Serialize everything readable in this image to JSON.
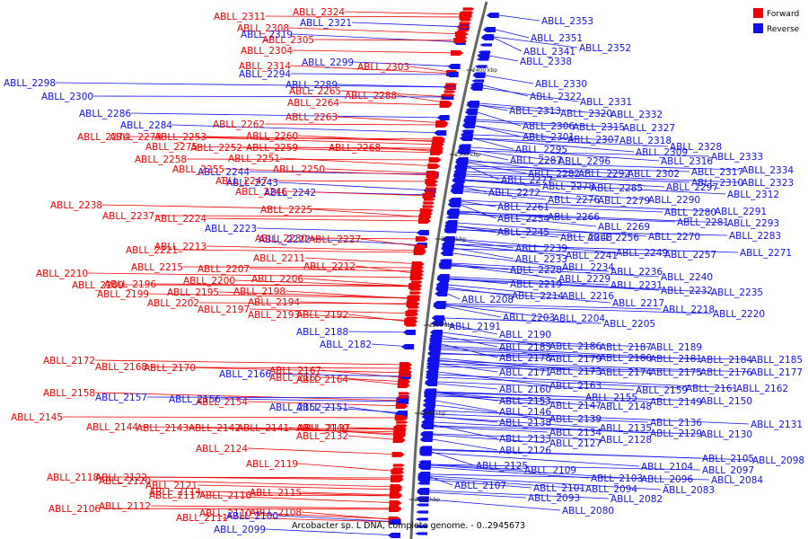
{
  "caption": "Arcobacter sp. L DNA, complete genome. - 0..2945673",
  "legend": [
    {
      "label": "Forward",
      "color": "#ee0000"
    },
    {
      "label": "Reverse",
      "color": "#1010ee"
    }
  ],
  "colors": {
    "forward": "#ee0000",
    "reverse": "#1010ee",
    "backbone": "#666666"
  },
  "ticks": [
    "2400 kbp",
    "2350 kbp",
    "2300 kbp",
    "2250 kbp",
    "2200 kbp",
    "2150 kbp"
  ],
  "left_labels": [
    [
      "ABLL_2311",
      "r"
    ],
    [
      "ABLL_2324",
      "r"
    ],
    [
      "ABLL_2321",
      "b"
    ],
    [
      "ABLL_2308",
      "r"
    ],
    [
      "ABLL_2319",
      "b"
    ],
    [
      "ABLL_2305",
      "r"
    ],
    [
      "ABLL_2304",
      "r"
    ],
    [
      "ABLL_2299",
      "b"
    ],
    [
      "ABLL_2303",
      "r"
    ],
    [
      "ABLL_2314",
      "r"
    ],
    [
      "ABLL_2294",
      "b"
    ],
    [
      "ABLL_2289",
      "b"
    ],
    [
      "ABLL_2298",
      "b"
    ],
    [
      "ABLL_2265",
      "r"
    ],
    [
      "ABLL_2288",
      "r"
    ],
    [
      "ABLL_2300",
      "b"
    ],
    [
      "ABLL_2264",
      "r"
    ],
    [
      "ABLL_2286",
      "b"
    ],
    [
      "ABLL_2263",
      "r"
    ],
    [
      "ABLL_2284",
      "b"
    ],
    [
      "ABLL_2262",
      "r"
    ],
    [
      "ABLL_2274",
      "r"
    ],
    [
      "ABLL_2253",
      "r"
    ],
    [
      "ABLL_2260",
      "r"
    ],
    [
      "ABLL_2273",
      "r"
    ],
    [
      "ABLL_2252",
      "r"
    ],
    [
      "ABLL_2259",
      "r"
    ],
    [
      "ABLL_2268",
      "r"
    ],
    [
      "ABLL_2275",
      "r"
    ],
    [
      "ABLL_2251",
      "r"
    ],
    [
      "ABLL_2258",
      "r"
    ],
    [
      "ABLL_2244",
      "b"
    ],
    [
      "ABLL_2250",
      "r"
    ],
    [
      "ABLL_2255",
      "r"
    ],
    [
      "ABLL_2243",
      "b"
    ],
    [
      "ABLL_2247",
      "r"
    ],
    [
      "ABLL_2242",
      "b"
    ],
    [
      "ABLL_2246",
      "r"
    ],
    [
      "ABLL_2238",
      "r"
    ],
    [
      "ABLL_2225",
      "r"
    ],
    [
      "ABLL_2237",
      "r"
    ],
    [
      "ABLL_2224",
      "r"
    ],
    [
      "ABLL_2223",
      "b"
    ],
    [
      "ABLL_2222",
      "b"
    ],
    [
      "ABLL_2227",
      "r"
    ],
    [
      "ABLL_2230",
      "r"
    ],
    [
      "ABLL_2221",
      "r"
    ],
    [
      "ABLL_2213",
      "r"
    ],
    [
      "ABLL_2211",
      "r"
    ],
    [
      "ABLL_2212",
      "r"
    ],
    [
      "ABLL_2215",
      "r"
    ],
    [
      "ABLL_2207",
      "r"
    ],
    [
      "ABLL_2210",
      "r"
    ],
    [
      "ABLL_2200",
      "r"
    ],
    [
      "ABLL_2206",
      "r"
    ],
    [
      "ABLL_2209",
      "r"
    ],
    [
      "ABLL_2196",
      "r"
    ],
    [
      "ABLL_2199",
      "r"
    ],
    [
      "ABLL_2195",
      "r"
    ],
    [
      "ABLL_2198",
      "r"
    ],
    [
      "ABLL_2202",
      "r"
    ],
    [
      "ABLL_2194",
      "r"
    ],
    [
      "ABLL_2197",
      "r"
    ],
    [
      "ABLL_2193",
      "r"
    ],
    [
      "ABLL_2192",
      "r"
    ],
    [
      "ABLL_2188",
      "b"
    ],
    [
      "ABLL_2182",
      "b"
    ],
    [
      "ABLL_2172",
      "r"
    ],
    [
      "ABLL_2168",
      "r"
    ],
    [
      "ABLL_2167",
      "r"
    ],
    [
      "ABLL_2170",
      "r"
    ],
    [
      "ABLL_2166",
      "b"
    ],
    [
      "ABLL_2165",
      "r"
    ],
    [
      "ABLL_2164",
      "r"
    ],
    [
      "ABLL_2158",
      "r"
    ],
    [
      "ABLL_2157",
      "b"
    ],
    [
      "ABLL_2156",
      "b"
    ],
    [
      "ABLL_2154",
      "r"
    ],
    [
      "ABLL_2152",
      "b"
    ],
    [
      "ABLL_2151",
      "b"
    ],
    [
      "ABLL_2145",
      "r"
    ],
    [
      "ABLL_2144",
      "r"
    ],
    [
      "ABLL_2143",
      "r"
    ],
    [
      "ABLL_2142",
      "r"
    ],
    [
      "ABLL_2141",
      "r"
    ],
    [
      "ABLL_2140",
      "r"
    ],
    [
      "ABLL_2137",
      "r"
    ],
    [
      "ABLL_2132",
      "r"
    ],
    [
      "ABLL_2124",
      "r"
    ],
    [
      "ABLL_2119",
      "r"
    ],
    [
      "ABLL_2118",
      "r"
    ],
    [
      "ABLL_2122",
      "r"
    ],
    [
      "ABLL_2121",
      "r"
    ],
    [
      "ABLL_2120",
      "r"
    ],
    [
      "ABLL_2117",
      "r"
    ],
    [
      "ABLL_2116",
      "r"
    ],
    [
      "ABLL_2115",
      "r"
    ],
    [
      "ABLL_2114",
      "r"
    ],
    [
      "ABLL_2110",
      "r"
    ],
    [
      "ABLL_2108",
      "r"
    ],
    [
      "ABLL_2106",
      "r"
    ],
    [
      "ABLL_2112",
      "r"
    ],
    [
      "ABLL_2111",
      "r"
    ],
    [
      "ABLL_2100",
      "b"
    ],
    [
      "ABLL_2099",
      "b"
    ]
  ],
  "right_labels": [
    [
      "ABLL_2353",
      "b"
    ],
    [
      "ABLL_2351",
      "b"
    ],
    [
      "ABLL_2352",
      "b"
    ],
    [
      "ABLL_2341",
      "b"
    ],
    [
      "ABLL_2338",
      "b"
    ],
    [
      "ABLL_2330",
      "b"
    ],
    [
      "ABLL_2322",
      "b"
    ],
    [
      "ABLL_2331",
      "b"
    ],
    [
      "ABLL_2313",
      "b"
    ],
    [
      "ABLL_2320",
      "b"
    ],
    [
      "ABLL_2332",
      "b"
    ],
    [
      "ABLL_2306",
      "b"
    ],
    [
      "ABLL_2315",
      "b"
    ],
    [
      "ABLL_2327",
      "b"
    ],
    [
      "ABLL_2301",
      "b"
    ],
    [
      "ABLL_2307",
      "b"
    ],
    [
      "ABLL_2318",
      "b"
    ],
    [
      "ABLL_2328",
      "b"
    ],
    [
      "ABLL_2295",
      "b"
    ],
    [
      "ABLL_2309",
      "b"
    ],
    [
      "ABLL_2333",
      "b"
    ],
    [
      "ABLL_2287",
      "b"
    ],
    [
      "ABLL_2296",
      "b"
    ],
    [
      "ABLL_2316",
      "b"
    ],
    [
      "ABLL_2317",
      "b"
    ],
    [
      "ABLL_2334",
      "b"
    ],
    [
      "ABLL_2282",
      "b"
    ],
    [
      "ABLL_2292",
      "b"
    ],
    [
      "ABLL_2302",
      "b"
    ],
    [
      "ABLL_2310",
      "b"
    ],
    [
      "ABLL_2323",
      "b"
    ],
    [
      "ABLL_2277",
      "b"
    ],
    [
      "ABLL_2278",
      "b"
    ],
    [
      "ABLL_2285",
      "b"
    ],
    [
      "ABLL_2297",
      "b"
    ],
    [
      "ABLL_2312",
      "b"
    ],
    [
      "ABLL_2272",
      "b"
    ],
    [
      "ABLL_2276",
      "b"
    ],
    [
      "ABLL_2279",
      "b"
    ],
    [
      "ABLL_2290",
      "b"
    ],
    [
      "ABLL_2261",
      "b"
    ],
    [
      "ABLL_2280",
      "b"
    ],
    [
      "ABLL_2291",
      "b"
    ],
    [
      "ABLL_2254",
      "b"
    ],
    [
      "ABLL_2266",
      "b"
    ],
    [
      "ABLL_2281",
      "b"
    ],
    [
      "ABLL_2293",
      "b"
    ],
    [
      "ABLL_2269",
      "b"
    ],
    [
      "ABLL_2245",
      "b"
    ],
    [
      "ABLL_2248",
      "b"
    ],
    [
      "ABLL_2256",
      "b"
    ],
    [
      "ABLL_2270",
      "b"
    ],
    [
      "ABLL_2283",
      "b"
    ],
    [
      "ABLL_2239",
      "b"
    ],
    [
      "ABLL_2241",
      "b"
    ],
    [
      "ABLL_2249",
      "b"
    ],
    [
      "ABLL_2257",
      "b"
    ],
    [
      "ABLL_2271",
      "b"
    ],
    [
      "ABLL_2233",
      "b"
    ],
    [
      "ABLL_2234",
      "b"
    ],
    [
      "ABLL_2228",
      "b"
    ],
    [
      "ABLL_2236",
      "b"
    ],
    [
      "ABLL_2240",
      "b"
    ],
    [
      "ABLL_2229",
      "b"
    ],
    [
      "ABLL_2219",
      "b"
    ],
    [
      "ABLL_2231",
      "b"
    ],
    [
      "ABLL_2232",
      "b"
    ],
    [
      "ABLL_2235",
      "b"
    ],
    [
      "ABLL_2208",
      "b"
    ],
    [
      "ABLL_2214",
      "b"
    ],
    [
      "ABLL_2216",
      "b"
    ],
    [
      "ABLL_2217",
      "b"
    ],
    [
      "ABLL_2218",
      "b"
    ],
    [
      "ABLL_2220",
      "b"
    ],
    [
      "ABLL_2203",
      "b"
    ],
    [
      "ABLL_2204",
      "b"
    ],
    [
      "ABLL_2205",
      "b"
    ],
    [
      "ABLL_2191",
      "b"
    ],
    [
      "ABLL_2190",
      "b"
    ],
    [
      "ABLL_2186",
      "b"
    ],
    [
      "ABLL_2187",
      "b"
    ],
    [
      "ABLL_2189",
      "b"
    ],
    [
      "ABLL_2183",
      "b"
    ],
    [
      "ABLL_2178",
      "b"
    ],
    [
      "ABLL_2179",
      "b"
    ],
    [
      "ABLL_2180",
      "b"
    ],
    [
      "ABLL_2181",
      "b"
    ],
    [
      "ABLL_2184",
      "b"
    ],
    [
      "ABLL_2185",
      "b"
    ],
    [
      "ABLL_2171",
      "b"
    ],
    [
      "ABLL_2173",
      "b"
    ],
    [
      "ABLL_2174",
      "b"
    ],
    [
      "ABLL_2175",
      "b"
    ],
    [
      "ABLL_2176",
      "b"
    ],
    [
      "ABLL_2177",
      "b"
    ],
    [
      "ABLL_2163",
      "b"
    ],
    [
      "ABLL_2160",
      "b"
    ],
    [
      "ABLL_2159",
      "b"
    ],
    [
      "ABLL_2161",
      "b"
    ],
    [
      "ABLL_2162",
      "b"
    ],
    [
      "ABLL_2155",
      "b"
    ],
    [
      "ABLL_2153",
      "b"
    ],
    [
      "ABLL_2147",
      "b"
    ],
    [
      "ABLL_2148",
      "b"
    ],
    [
      "ABLL_2149",
      "b"
    ],
    [
      "ABLL_2150",
      "b"
    ],
    [
      "ABLL_2146",
      "b"
    ],
    [
      "ABLL_2139",
      "b"
    ],
    [
      "ABLL_2138",
      "b"
    ],
    [
      "ABLL_2136",
      "b"
    ],
    [
      "ABLL_2135",
      "b"
    ],
    [
      "ABLL_2131",
      "b"
    ],
    [
      "ABLL_2134",
      "b"
    ],
    [
      "ABLL_2130",
      "b"
    ],
    [
      "ABLL_2129",
      "b"
    ],
    [
      "ABLL_2133",
      "b"
    ],
    [
      "ABLL_2128",
      "b"
    ],
    [
      "ABLL_2127",
      "b"
    ],
    [
      "ABLL_2126",
      "b"
    ],
    [
      "ABLL_2125",
      "b"
    ],
    [
      "ABLL_2109",
      "b"
    ],
    [
      "ABLL_2105",
      "b"
    ],
    [
      "ABLL_2098",
      "b"
    ],
    [
      "ABLL_2104",
      "b"
    ],
    [
      "ABLL_2097",
      "b"
    ],
    [
      "ABLL_2107",
      "b"
    ],
    [
      "ABLL_2103",
      "b"
    ],
    [
      "ABLL_2096",
      "b"
    ],
    [
      "ABLL_2084",
      "b"
    ],
    [
      "ABLL_2101",
      "b"
    ],
    [
      "ABLL_2094",
      "b"
    ],
    [
      "ABLL_2083",
      "b"
    ],
    [
      "ABLL_2093",
      "b"
    ],
    [
      "ABLL_2082",
      "b"
    ],
    [
      "ABLL_2080",
      "b"
    ]
  ]
}
